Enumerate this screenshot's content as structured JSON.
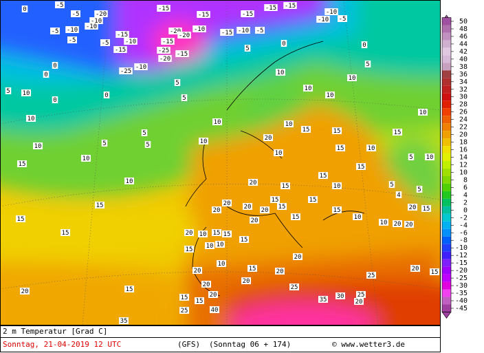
{
  "map": {
    "legend_ticks": [
      50,
      48,
      46,
      44,
      42,
      40,
      38,
      36,
      34,
      32,
      30,
      28,
      26,
      24,
      22,
      20,
      18,
      16,
      14,
      12,
      10,
      8,
      6,
      4,
      2,
      0,
      -2,
      -4,
      -6,
      -8,
      -10,
      -12,
      -15,
      -20,
      -25,
      -30,
      -35,
      -40,
      -45
    ],
    "contour_labels": [
      "0",
      "-5",
      "-5",
      "-20",
      "-10",
      "-10",
      "-10",
      "-5",
      "-5",
      "-5",
      "-15",
      "-15",
      "-10",
      "-15",
      "-15",
      "-15",
      "-15",
      "-15",
      "-10",
      "-5",
      "-10",
      "-15",
      "-10",
      "-5",
      "-20",
      "-20",
      "-10",
      "-15",
      "-25",
      "-20",
      "-15",
      "-25",
      "-10",
      "5",
      "0",
      "0",
      "0",
      "0",
      "5",
      "10",
      "0",
      "0",
      "5",
      "5",
      "10",
      "5",
      "5",
      "5",
      "10",
      "10",
      "15",
      "10",
      "15",
      "15",
      "15",
      "10",
      "10",
      "10",
      "10",
      "5",
      "10",
      "10",
      "10",
      "20",
      "10",
      "15",
      "15",
      "15",
      "10",
      "10",
      "15",
      "15",
      "5",
      "10",
      "5",
      "4",
      "5",
      "15",
      "20",
      "10",
      "15",
      "20",
      "15",
      "15",
      "15",
      "20",
      "20",
      "20",
      "20",
      "15",
      "15",
      "20",
      "15",
      "10",
      "10",
      "20",
      "20",
      "20",
      "10",
      "15",
      "15",
      "15",
      "10",
      "10",
      "15",
      "10",
      "15",
      "20",
      "20",
      "20",
      "20",
      "20",
      "25",
      "25",
      "20",
      "15",
      "20",
      "15",
      "15",
      "20",
      "15",
      "40",
      "25",
      "35",
      "30",
      "20",
      "25",
      "35"
    ]
  },
  "footer": {
    "variable": "2 m Temperatur [Grad C]",
    "date": "Sonntag, 21-04-2019  12 UTC",
    "model": "(GFS)",
    "run": "(Sonntag 06 + 174)",
    "credit": "© www.wetter3.de"
  }
}
